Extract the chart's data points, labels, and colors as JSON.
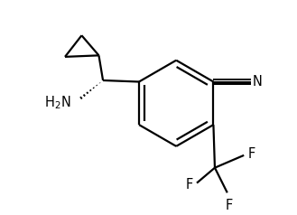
{
  "background_color": "#ffffff",
  "line_color": "#000000",
  "lw": 1.6,
  "fig_w": 3.29,
  "fig_h": 2.38,
  "dpi": 100,
  "xlim": [
    0,
    10
  ],
  "ylim": [
    0,
    7.5
  ]
}
